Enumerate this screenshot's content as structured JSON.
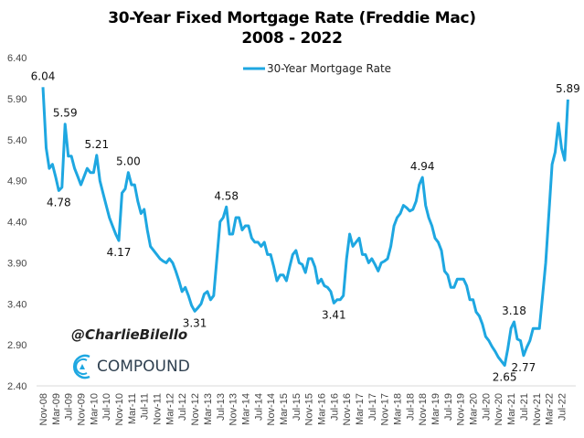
{
  "chart_data": {
    "type": "line",
    "title": "30-Year Fixed Mortgage Rate (Freddie Mac)",
    "subtitle": "2008 - 2022",
    "legend": {
      "position": "top-center",
      "entries": [
        "30-Year Mortgage Rate"
      ]
    },
    "ylim": [
      2.4,
      6.4
    ],
    "yticks": [
      "2.40",
      "2.90",
      "3.40",
      "3.90",
      "4.40",
      "4.90",
      "5.40",
      "5.90",
      "6.40"
    ],
    "xticks": [
      "Nov-08",
      "Mar-09",
      "Jul-09",
      "Nov-09",
      "Mar-10",
      "Jul-10",
      "Nov-10",
      "Mar-11",
      "Jul-11",
      "Nov-11",
      "Mar-12",
      "Jul-12",
      "Nov-12",
      "Mar-13",
      "Jul-13",
      "Nov-13",
      "Mar-14",
      "Jul-14",
      "Nov-14",
      "Mar-15",
      "Jul-15",
      "Nov-15",
      "Mar-16",
      "Jul-16",
      "Nov-16",
      "Mar-17",
      "Jul-17",
      "Nov-17",
      "Mar-18",
      "Jul-18",
      "Nov-18",
      "Mar-19",
      "Jul-19",
      "Nov-19",
      "Mar-20",
      "Jul-20",
      "Nov-20",
      "Mar-21",
      "Jul-21",
      "Nov-21",
      "Mar-22",
      "Jul-22"
    ],
    "grid": false,
    "series": [
      {
        "name": "30-Year Mortgage Rate",
        "color": "#1ea7e1",
        "start": "Nov-08",
        "frequency": "monthly",
        "values": [
          6.04,
          5.3,
          5.05,
          5.1,
          4.95,
          4.78,
          4.82,
          5.59,
          5.2,
          5.2,
          5.05,
          4.95,
          4.85,
          4.95,
          5.05,
          5.0,
          5.0,
          5.21,
          4.9,
          4.75,
          4.6,
          4.45,
          4.35,
          4.25,
          4.17,
          4.75,
          4.8,
          5.0,
          4.85,
          4.85,
          4.65,
          4.5,
          4.55,
          4.3,
          4.1,
          4.05,
          4.0,
          3.95,
          3.92,
          3.9,
          3.95,
          3.9,
          3.8,
          3.68,
          3.55,
          3.6,
          3.5,
          3.38,
          3.31,
          3.35,
          3.4,
          3.52,
          3.55,
          3.45,
          3.5,
          3.95,
          4.4,
          4.45,
          4.58,
          4.25,
          4.25,
          4.45,
          4.45,
          4.3,
          4.35,
          4.35,
          4.2,
          4.15,
          4.15,
          4.1,
          4.15,
          4.0,
          4.0,
          3.85,
          3.68,
          3.75,
          3.75,
          3.68,
          3.85,
          4.0,
          4.05,
          3.9,
          3.88,
          3.78,
          3.95,
          3.95,
          3.85,
          3.65,
          3.7,
          3.62,
          3.6,
          3.55,
          3.41,
          3.45,
          3.45,
          3.5,
          3.95,
          4.25,
          4.1,
          4.15,
          4.2,
          4.0,
          4.0,
          3.9,
          3.95,
          3.88,
          3.8,
          3.9,
          3.92,
          3.95,
          4.1,
          4.35,
          4.45,
          4.5,
          4.6,
          4.57,
          4.53,
          4.55,
          4.65,
          4.85,
          4.94,
          4.6,
          4.45,
          4.35,
          4.2,
          4.15,
          4.05,
          3.8,
          3.75,
          3.6,
          3.6,
          3.7,
          3.7,
          3.7,
          3.62,
          3.45,
          3.45,
          3.3,
          3.25,
          3.15,
          3.0,
          2.95,
          2.88,
          2.82,
          2.75,
          2.7,
          2.65,
          2.85,
          3.1,
          3.18,
          2.97,
          2.95,
          2.77,
          2.87,
          2.95,
          3.1,
          3.1,
          3.1,
          3.5,
          3.9,
          4.5,
          5.1,
          5.25,
          5.6,
          5.3,
          5.15,
          5.89
        ]
      }
    ],
    "annotations": [
      {
        "date": "Nov-08",
        "value": "6.04",
        "pos": "above"
      },
      {
        "date": "Apr-09",
        "value": "4.78",
        "pos": "below"
      },
      {
        "date": "Jun-09",
        "value": "5.59",
        "pos": "above"
      },
      {
        "date": "Apr-10",
        "value": "5.21",
        "pos": "above"
      },
      {
        "date": "Nov-10",
        "value": "4.17",
        "pos": "below"
      },
      {
        "date": "Feb-11",
        "value": "5.00",
        "pos": "above"
      },
      {
        "date": "Nov-12",
        "value": "3.31",
        "pos": "below"
      },
      {
        "date": "Sep-13",
        "value": "4.58",
        "pos": "above"
      },
      {
        "date": "Jul-16",
        "value": "3.41",
        "pos": "below"
      },
      {
        "date": "Nov-18",
        "value": "4.94",
        "pos": "above"
      },
      {
        "date": "Jan-21",
        "value": "2.65",
        "pos": "below"
      },
      {
        "date": "Apr-21",
        "value": "3.18",
        "pos": "above"
      },
      {
        "date": "Jul-21",
        "value": "2.77",
        "pos": "below"
      },
      {
        "date": "Sep-22",
        "value": "5.89",
        "pos": "above"
      }
    ]
  },
  "watermark": {
    "handle": "@CharlieBilello",
    "brand": "COMPOUND",
    "brand_color": "#1ea7e1"
  }
}
